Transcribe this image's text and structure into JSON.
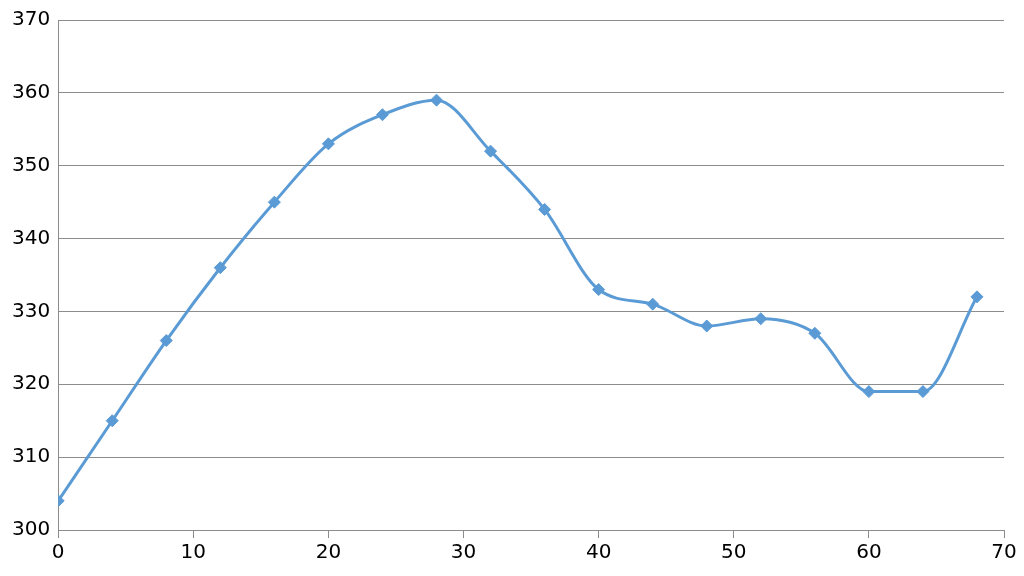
{
  "chart_data": {
    "type": "line",
    "x": [
      0,
      4,
      8,
      12,
      16,
      20,
      24,
      28,
      32,
      36,
      40,
      44,
      48,
      52,
      56,
      60,
      64,
      68
    ],
    "series": [
      {
        "color": "#5b9bd5",
        "values": [
          304,
          315,
          326,
          336,
          345,
          353,
          357,
          359,
          352,
          344,
          333,
          331,
          328,
          329,
          327,
          319,
          319,
          332
        ]
      }
    ],
    "xlim": [
      0,
      70
    ],
    "xticks": [
      0,
      10,
      20,
      30,
      40,
      50,
      60,
      70
    ],
    "ylim": [
      300,
      370
    ],
    "yticks": [
      300,
      310,
      320,
      330,
      340,
      350,
      360,
      370
    ],
    "grid": "y",
    "legend": false,
    "marker": "diamond",
    "line_style": "solid"
  }
}
